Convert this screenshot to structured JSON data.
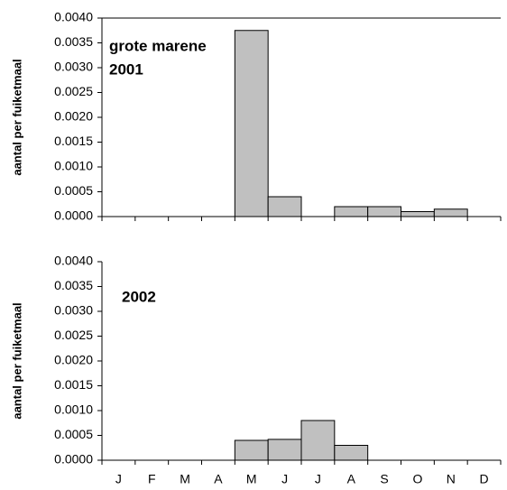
{
  "chart_data": [
    {
      "type": "bar",
      "annotations": [
        "grote marene",
        "2001"
      ],
      "y_label": "aantal per fuiketmaal",
      "categories": [
        null,
        null,
        null,
        null,
        null,
        null,
        null,
        null,
        null,
        null,
        null,
        null
      ],
      "values": [
        0,
        0,
        0,
        0,
        0.00375,
        0.0004,
        0,
        0.0002,
        0.0002,
        0.0001,
        0.00015,
        0
      ],
      "color": "#c0c0c0",
      "ylim": [
        0,
        0.004
      ],
      "yticks": [
        {
          "value": 0,
          "label": "0.0000"
        },
        {
          "value": 0.0005,
          "label": "0.0005"
        },
        {
          "value": 0.001,
          "label": "0.0010"
        },
        {
          "value": 0.0015,
          "label": "0.0015"
        },
        {
          "value": 0.002,
          "label": "0.0020"
        },
        {
          "value": 0.0025,
          "label": "0.0025"
        },
        {
          "value": 0.003,
          "label": "0.0030"
        },
        {
          "value": 0.0035,
          "label": "0.0035"
        },
        {
          "value": 0.004,
          "label": "0.0040"
        }
      ]
    },
    {
      "type": "bar",
      "annotations": [
        "2002"
      ],
      "y_label": "aantal per fuiketmaal",
      "categories": [
        "J",
        "F",
        "M",
        "A",
        "M",
        "J",
        "J",
        "A",
        "S",
        "O",
        "N",
        "D"
      ],
      "values": [
        0,
        0,
        0,
        0,
        0.0004,
        0.00042,
        0.0008,
        0.0003,
        0,
        0,
        0,
        0
      ],
      "color": "#c0c0c0",
      "ylim": [
        0,
        0.004
      ],
      "yticks": [
        {
          "value": 0,
          "label": "0.0000"
        },
        {
          "value": 0.0005,
          "label": "0.0005"
        },
        {
          "value": 0.001,
          "label": "0.0010"
        },
        {
          "value": 0.0015,
          "label": "0.0015"
        },
        {
          "value": 0.002,
          "label": "0.0020"
        },
        {
          "value": 0.0025,
          "label": "0.0025"
        },
        {
          "value": 0.003,
          "label": "0.0030"
        },
        {
          "value": 0.0035,
          "label": "0.0035"
        },
        {
          "value": 0.004,
          "label": "0.0040"
        }
      ]
    }
  ]
}
